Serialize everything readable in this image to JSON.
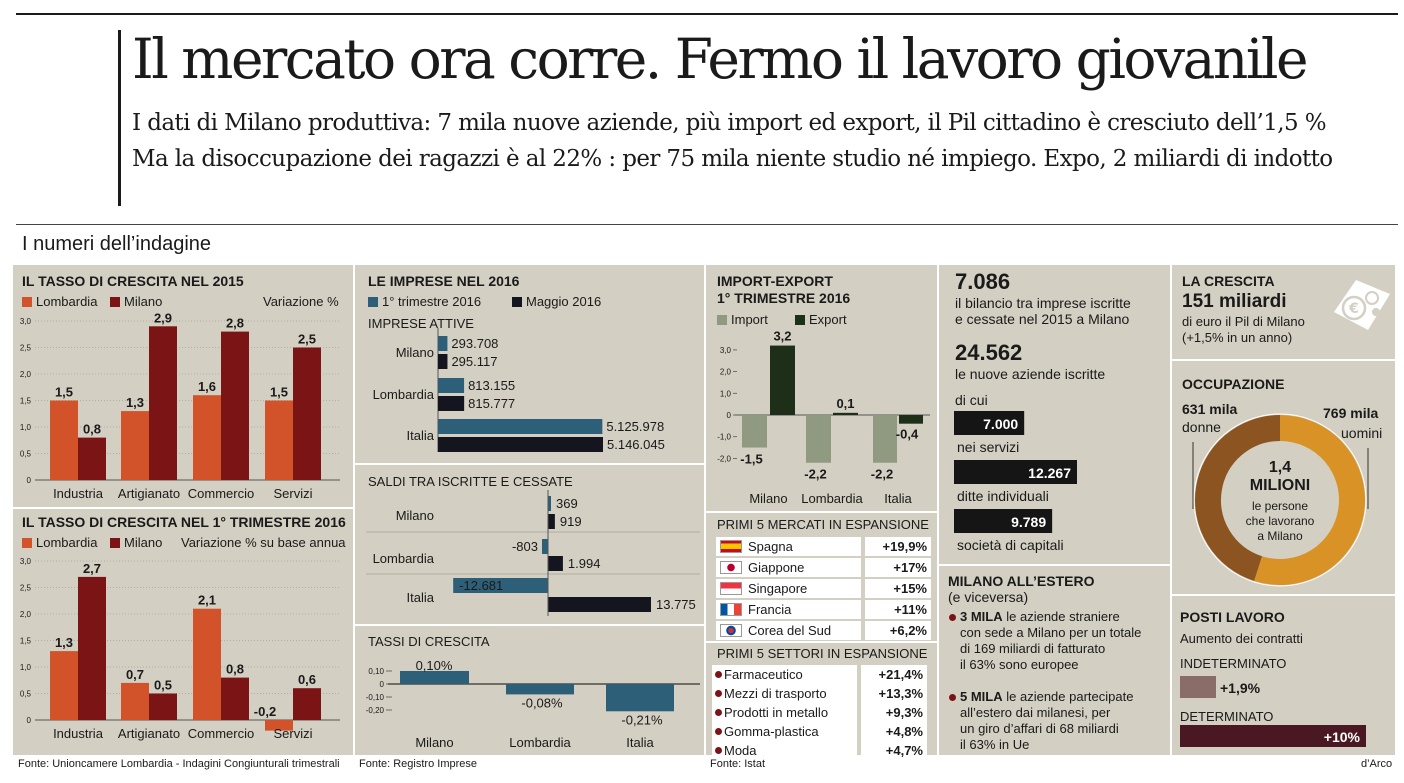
{
  "header": {
    "headline": "Il mercato ora corre. Fermo il lavoro giovanile",
    "sub1": "I dati di Milano produttiva: 7 mila nuove aziende, più import ed export, il Pil cittadino è cresciuto dell’1,5 %",
    "sub2": "Ma la disoccupazione dei ragazzi è al 22% : per 75 mila niente studio né impiego. Expo, 2 miliardi di indotto",
    "section": "I numeri dell’indagine"
  },
  "colors": {
    "lombardia": "#d2532a",
    "milano": "#7b1515",
    "trim": "#2e5f78",
    "maggio": "#15151f",
    "import": "#8f9a80",
    "export": "#1d2f18",
    "ochre": "#d99226",
    "posti_ind": "#8a6d68",
    "posti_det": "#4a1822"
  },
  "sources": {
    "s1": "Fonte: Unioncamere Lombardia - Indagini Congiunturali trimestrali",
    "s2": "Fonte: Registro Imprese",
    "s3": "Fonte: Istat",
    "s4": "d’Arco"
  },
  "chart_data": [
    {
      "id": "crescita2015",
      "type": "bar",
      "title": "IL TASSO DI CRESCITA NEL 2015",
      "unit_label": "Variazione %",
      "categories": [
        "Industria",
        "Artigianato",
        "Commercio",
        "Servizi"
      ],
      "series": [
        {
          "name": "Lombardia",
          "values": [
            1.5,
            1.3,
            1.6,
            1.5
          ]
        },
        {
          "name": "Milano",
          "values": [
            0.8,
            2.9,
            2.8,
            2.5
          ]
        }
      ],
      "value_labels": [
        [
          "1,5",
          "1,3",
          "1,6",
          "1,5"
        ],
        [
          "0,8",
          "2,9",
          "2,8",
          "2,5"
        ]
      ],
      "yticks": [
        "0",
        "0,5",
        "1,0",
        "1,5",
        "2,0",
        "2,5",
        "3,0"
      ],
      "ylim": [
        0,
        3
      ]
    },
    {
      "id": "crescita2016",
      "type": "bar",
      "title": "IL TASSO DI CRESCITA NEL 1° TRIMESTRE 2016",
      "unit_label": "Variazione % su base annua",
      "categories": [
        "Industria",
        "Artigianato",
        "Commercio",
        "Servizi"
      ],
      "series": [
        {
          "name": "Lombardia",
          "values": [
            1.3,
            0.7,
            2.1,
            -0.2
          ]
        },
        {
          "name": "Milano",
          "values": [
            2.7,
            0.5,
            0.8,
            0.6
          ]
        }
      ],
      "value_labels": [
        [
          "1,3",
          "0,7",
          "2,1",
          "-0,2"
        ],
        [
          "2,7",
          "0,5",
          "0,8",
          "0,6"
        ]
      ],
      "yticks": [
        "0",
        "0,5",
        "1,0",
        "1,5",
        "2,0",
        "2,5",
        "3,0"
      ],
      "ylim": [
        -0.3,
        3
      ]
    },
    {
      "id": "imprese_attive",
      "type": "bar",
      "title": "LE IMPRESE NEL 2016",
      "subtitle": "IMPRESE ATTIVE",
      "categories": [
        "Milano",
        "Lombardia",
        "Italia"
      ],
      "series": [
        {
          "name": "1° trimestre 2016",
          "values": [
            293708,
            813155,
            5125978
          ]
        },
        {
          "name": "Maggio 2016",
          "values": [
            295117,
            815777,
            5146045
          ]
        }
      ],
      "value_labels": [
        [
          "293.708",
          "813.155",
          "5.125.978"
        ],
        [
          "295.117",
          "815.777",
          "5.146.045"
        ]
      ]
    },
    {
      "id": "saldi",
      "type": "bar",
      "title": "SALDI TRA ISCRITTE E CESSATE",
      "categories": [
        "Milano",
        "Lombardia",
        "Italia"
      ],
      "series": [
        {
          "name": "1° trimestre 2016",
          "values": [
            369,
            -803,
            -12681
          ]
        },
        {
          "name": "Maggio 2016",
          "values": [
            919,
            1994,
            13775
          ]
        }
      ],
      "value_labels": [
        [
          "369",
          "-803",
          "-12.681"
        ],
        [
          "919",
          "1.994",
          "13.775"
        ]
      ]
    },
    {
      "id": "tassi",
      "type": "bar",
      "title": "TASSI DI CRESCITA",
      "categories": [
        "Milano",
        "Lombardia",
        "Italia"
      ],
      "values": [
        0.1,
        -0.08,
        -0.21
      ],
      "value_labels": [
        "0,10%",
        "-0,08%",
        "-0,21%"
      ],
      "yticks": [
        "0,10",
        "0",
        "-0,10",
        "-0,20"
      ]
    },
    {
      "id": "importexport",
      "type": "bar",
      "title": "IMPORT-EXPORT",
      "subtitle": "1° TRIMESTRE 2016",
      "categories": [
        "Milano",
        "Lombardia",
        "Italia"
      ],
      "series": [
        {
          "name": "Import",
          "values": [
            -1.5,
            -2.2,
            -2.2
          ]
        },
        {
          "name": "Export",
          "values": [
            3.2,
            0.1,
            -0.4
          ]
        }
      ],
      "value_labels": [
        [
          "-1,5",
          "-2,2",
          "-2,2"
        ],
        [
          "3,2",
          "0,1",
          "-0,4"
        ]
      ],
      "yticks": [
        "3,0",
        "2,0",
        "1,0",
        "0",
        "-1,0",
        "-2,0"
      ],
      "ylim": [
        -2.5,
        3.5
      ]
    },
    {
      "id": "mercati",
      "type": "table",
      "title": "PRIMI 5 MERCATI IN ESPANSIONE",
      "rows": [
        {
          "name": "Spagna",
          "value": "+19,9%"
        },
        {
          "name": "Giappone",
          "value": "+17%"
        },
        {
          "name": "Singapore",
          "value": "+15%"
        },
        {
          "name": "Francia",
          "value": "+11%"
        },
        {
          "name": "Corea del Sud",
          "value": "+6,2%"
        }
      ]
    },
    {
      "id": "settori",
      "type": "table",
      "title": "PRIMI 5 SETTORI IN ESPANSIONE",
      "rows": [
        {
          "name": "Farmaceutico",
          "value": "+21,4%"
        },
        {
          "name": "Mezzi di trasporto",
          "value": "+13,3%"
        },
        {
          "name": "Prodotti in metallo",
          "value": "+9,3%"
        },
        {
          "name": "Gomma-plastica",
          "value": "+4,8%"
        },
        {
          "name": "Moda",
          "value": "+4,7%"
        }
      ]
    },
    {
      "id": "nuove_aziende",
      "type": "bar",
      "categories": [
        "nei servizi",
        "ditte individuali",
        "società di capitali"
      ],
      "values": [
        7000,
        12267,
        9789
      ],
      "value_labels": [
        "7.000",
        "12.267",
        "9.789"
      ]
    },
    {
      "id": "occupazione",
      "type": "pie",
      "title": "OCCUPAZIONE",
      "slices": [
        {
          "name": "donne",
          "value": 631
        },
        {
          "name": "uomini",
          "value": 769
        }
      ],
      "slice_labels": [
        "631 mila",
        "769 mila"
      ],
      "center_value": "1,4",
      "center_unit": "MILIONI",
      "center_caption": [
        "le persone",
        "che lavorano",
        "a Milano"
      ]
    },
    {
      "id": "posti",
      "type": "bar",
      "title": "POSTI LAVORO",
      "subtitle": "Aumento dei contratti",
      "categories": [
        "INDETERMINATO",
        "DETERMINATO"
      ],
      "values": [
        1.9,
        10
      ],
      "value_labels": [
        "+1,9%",
        "+10%"
      ]
    }
  ],
  "col4": {
    "n1": "7.086",
    "n1_text1": "il bilancio tra imprese iscritte",
    "n1_text2": "e cessate nel 2015 a Milano",
    "n2": "24.562",
    "n2_text": "le nuove aziende iscritte",
    "di_cui": "di cui",
    "estero_title": "MILANO ALL’ESTERO",
    "estero_sub": "(e viceversa)",
    "e1_bold": "3 MILA",
    "e1_l1": "le aziende straniere",
    "e1_l2": "con sede a Milano per un totale",
    "e1_l3": "di 169 miliardi di fatturato",
    "e1_l4": "il 63% sono europee",
    "e2_bold": "5 MILA",
    "e2_l1": "le aziende partecipate",
    "e2_l2": "all’estero dai milanesi, per",
    "e2_l3": "un giro d’affari di 68 miliardi",
    "e2_l4": "il 63% in Ue"
  },
  "col5": {
    "crescita_title": "LA CRESCITA",
    "crescita_value": "151 miliardi",
    "crescita_l1": "di euro il Pil di Milano",
    "crescita_l2": "(+1,5% in un anno)"
  }
}
